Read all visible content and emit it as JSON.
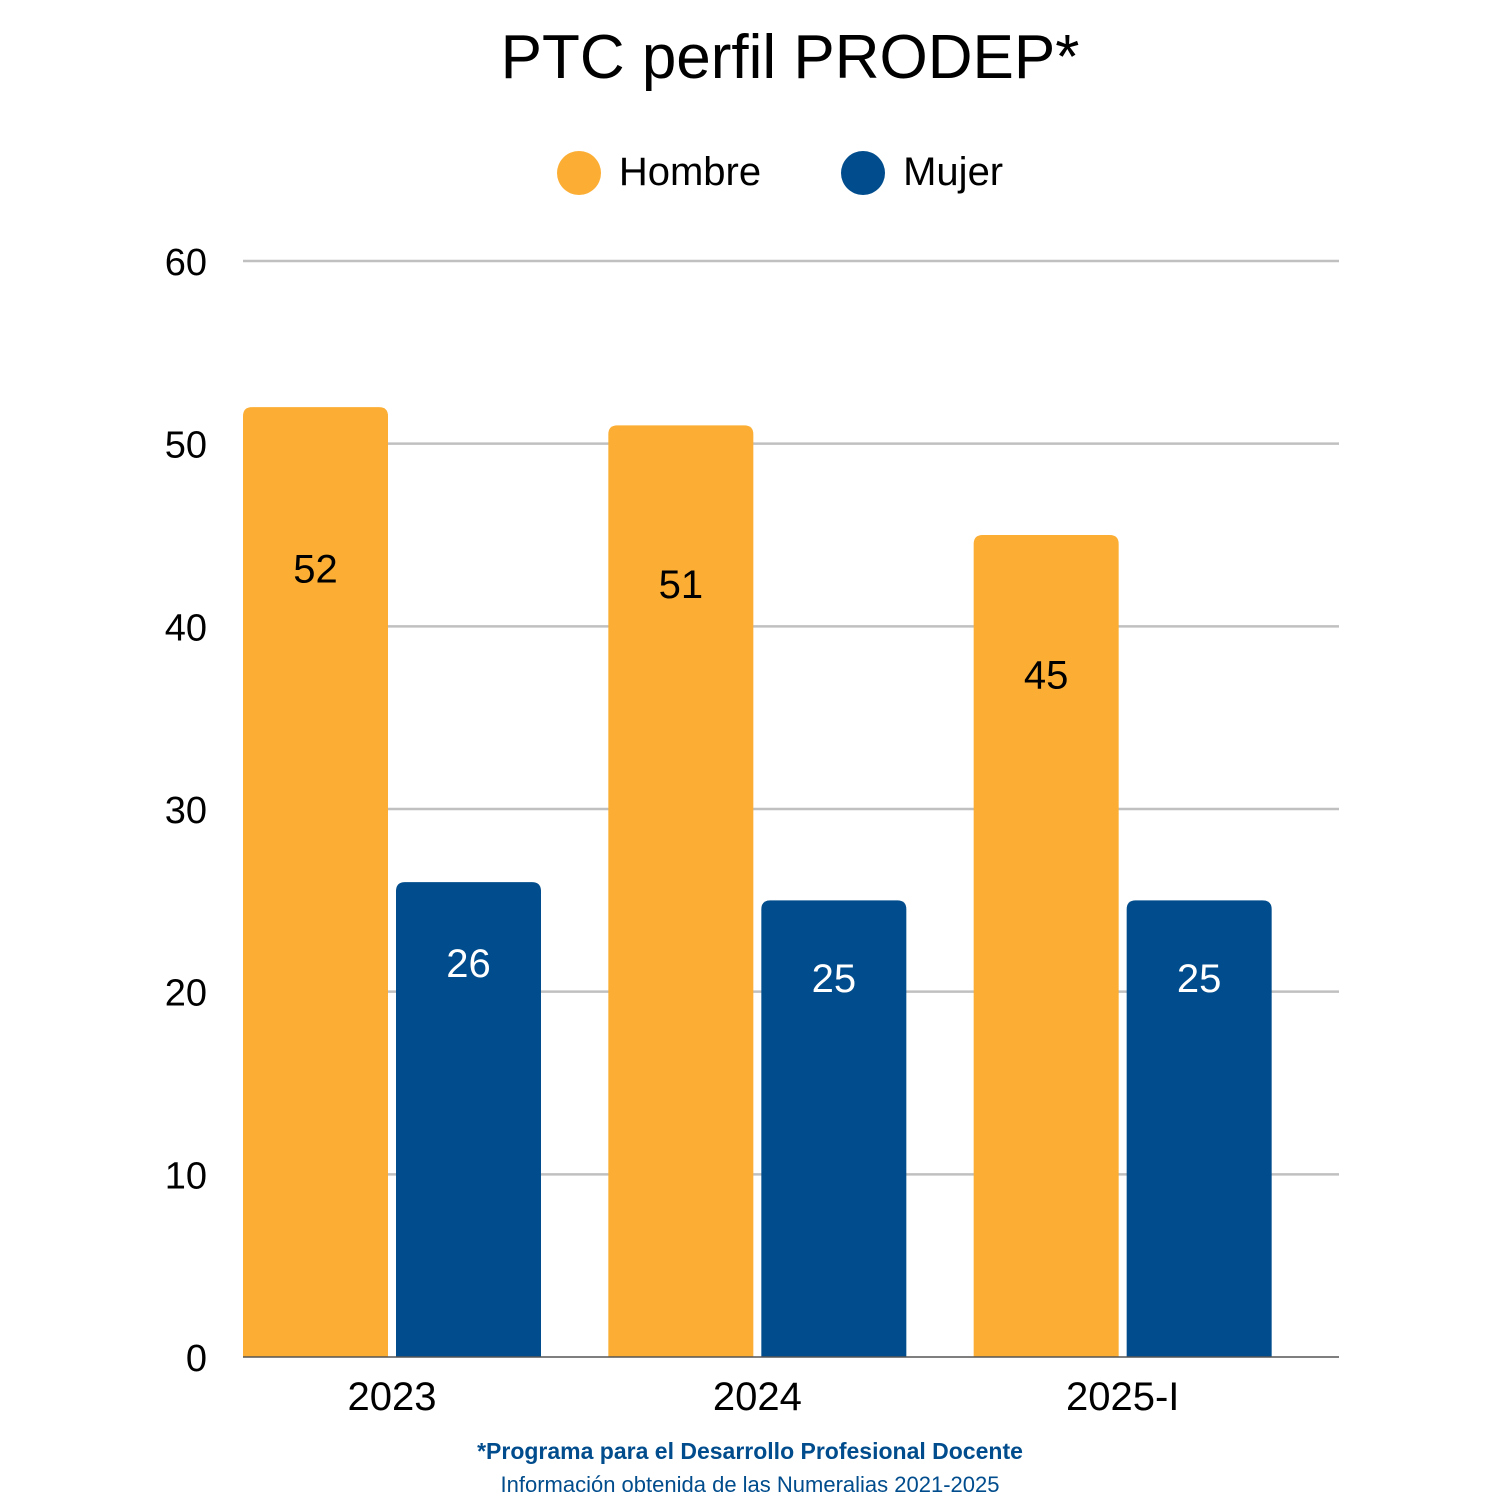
{
  "chart_data": {
    "type": "bar",
    "title": "PTC perfil PRODEP*",
    "categories": [
      "2023",
      "2024",
      "2025-I"
    ],
    "series": [
      {
        "name": "Hombre",
        "color": "#fbae33",
        "label_color": "#000000",
        "values": [
          52,
          51,
          45
        ]
      },
      {
        "name": "Mujer",
        "color": "#004c8c",
        "label_color": "#ffffff",
        "values": [
          26,
          25,
          25
        ]
      }
    ],
    "ylim": [
      0,
      60
    ],
    "yticks": [
      "0",
      "10",
      "20",
      "30",
      "40",
      "50",
      "60"
    ],
    "grid": true,
    "legend": "top-center",
    "footnote": "*Programa para el Desarrollo Profesional Docente",
    "source": "Información obtenida de las Numeralias 2021-2025"
  }
}
